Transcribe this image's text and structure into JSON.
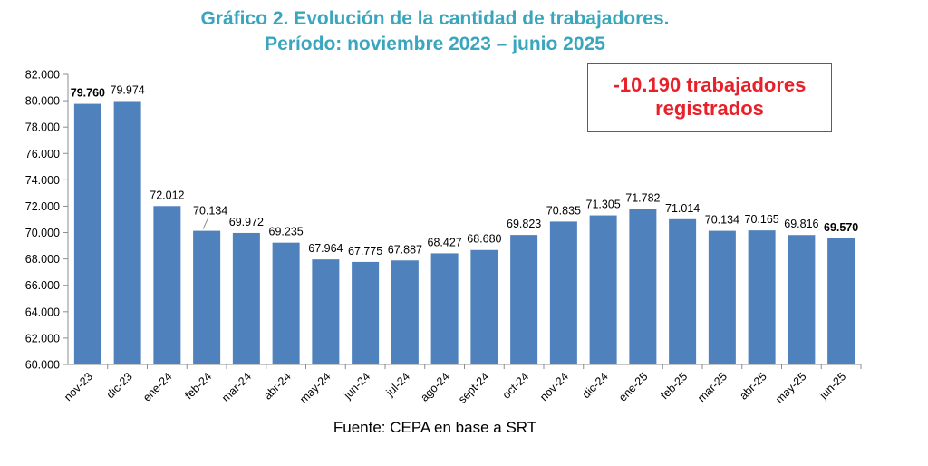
{
  "header": {
    "title_line1": "Gráfico 2. Evolución de la cantidad de trabajadores.",
    "title_line2": "Período: noviembre 2023 – junio 2025"
  },
  "callout": {
    "line1": "-10.190 trabajadores",
    "line2": "registrados"
  },
  "footer": {
    "source": "Fuente: CEPA en base a SRT"
  },
  "colors": {
    "bar": "#4f81bd",
    "title": "#3aa6bd",
    "callout": "#e8202a"
  },
  "chart_data": {
    "type": "bar",
    "categories": [
      "nov-23",
      "dic-23",
      "ene-24",
      "feb-24",
      "mar-24",
      "abr-24",
      "may-24",
      "jun-24",
      "jul-24",
      "ago-24",
      "sept-24",
      "oct-24",
      "nov-24",
      "dic-24",
      "ene-25",
      "feb-25",
      "mar-25",
      "abr-25",
      "may-25",
      "jun-25"
    ],
    "values": [
      79760,
      79974,
      72012,
      70134,
      69972,
      69235,
      67964,
      67775,
      67887,
      68427,
      68680,
      69823,
      70835,
      71305,
      71782,
      71014,
      70134,
      70165,
      69816,
      69570
    ],
    "data_labels": [
      "79.760",
      "79.974",
      "72.012",
      "70.134",
      "69.972",
      "69.235",
      "67.964",
      "67.775",
      "67.887",
      "68.427",
      "68.680",
      "69.823",
      "70.835",
      "71.305",
      "71.782",
      "71.014",
      "70.134",
      "70.165",
      "69.816",
      "69.570"
    ],
    "bold_labels": [
      0,
      19
    ],
    "y_ticks": [
      "60.000",
      "62.000",
      "64.000",
      "66.000",
      "68.000",
      "70.000",
      "72.000",
      "74.000",
      "76.000",
      "78.000",
      "80.000",
      "82.000"
    ],
    "ylim": [
      60000,
      82000
    ],
    "grid": false,
    "legend": "none"
  }
}
